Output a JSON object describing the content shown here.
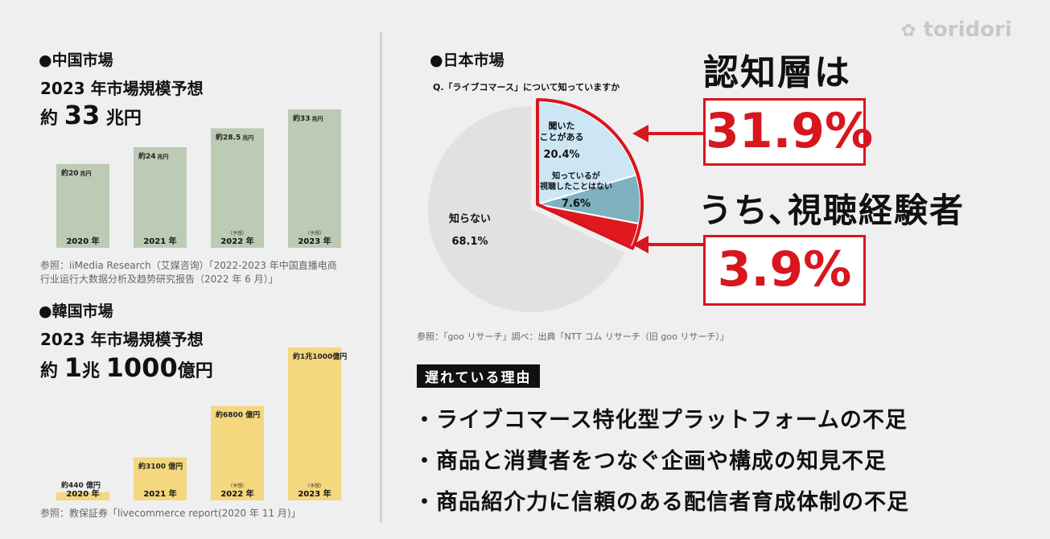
{
  "logo": {
    "text": "toridori"
  },
  "china": {
    "section_title": "●中国市場",
    "subtitle": "2023 年市場規模予想",
    "total_prefix": "約",
    "total_value": "33",
    "total_unit": "兆円",
    "source": "参照：iiMedia Research（艾媒咨询）「2022-2023 年中国直播电商行业运行大数据分析及趋势研究报告（2022 年 6 月）」"
  },
  "korea": {
    "section_title": "●韓国市場",
    "subtitle": "2023 年市場規模予想",
    "total_prefix": "約",
    "total_value1": "1",
    "total_unit1": "兆",
    "total_value2": "1000",
    "total_unit2": "億円",
    "source": "参照：教保証券「livecommerce report(2020 年 11 月)」"
  },
  "japan": {
    "section_title": "●日本市場",
    "question": "Q.「ライブコマース」について知っていますか",
    "source": "参照：「goo リサーチ」調べ：出典「NTT コム リサーチ（旧 goo リサーチ）」",
    "headline1": "認知層は",
    "value1": "31.9%",
    "headline2": "うち､視聴経験者",
    "value2": "3.9%"
  },
  "reasons": {
    "tag": "遅れている理由",
    "items": [
      "・ライブコマース特化型プラットフォームの不足",
      "・商品と消費者をつなぐ企画や構成の知見不足",
      "・商品紹介力に信頼のある配信者育成体制の不足"
    ]
  },
  "chart_data": [
    {
      "type": "bar",
      "name": "china",
      "categories": [
        "2020 年",
        "2021 年",
        "2022 年",
        "2023 年"
      ],
      "values": [
        20,
        24,
        28.5,
        33
      ],
      "value_labels_prefix": "約",
      "value_labels": [
        "20",
        "24",
        "28.5",
        "33"
      ],
      "value_unit": "兆円",
      "forecast_marks": [
        "",
        "",
        "（予想）",
        "（予想）"
      ],
      "ylim": [
        0,
        33
      ],
      "color": "#bccbb4"
    },
    {
      "type": "bar",
      "name": "korea",
      "categories": [
        "2020 年",
        "2021 年",
        "2022 年",
        "2023 年"
      ],
      "values": [
        440,
        3100,
        6800,
        11000
      ],
      "value_labels": [
        "約440 億円",
        "約3100 億円",
        "約6800 億円",
        "約1兆1000億円"
      ],
      "forecast_marks": [
        "",
        "",
        "（予想）",
        "（予想）"
      ],
      "ylim": [
        0,
        11000
      ],
      "color": "#f4d77e"
    },
    {
      "type": "pie",
      "name": "japan",
      "slices": [
        {
          "label": "聞いた ことがある",
          "value": 20.4,
          "display": "20.4%",
          "color": "#cce6f4"
        },
        {
          "label": "知っているが 視聴したことはない",
          "value": 7.6,
          "display": "7.6%",
          "color": "#7fb1bf"
        },
        {
          "label": "",
          "value": 3.9,
          "display": "",
          "color": "#e0191f"
        },
        {
          "label": "知らない",
          "value": 68.1,
          "display": "68.1%",
          "color": "#e1e1e1"
        }
      ],
      "highlight_color": "#d7161e"
    }
  ]
}
